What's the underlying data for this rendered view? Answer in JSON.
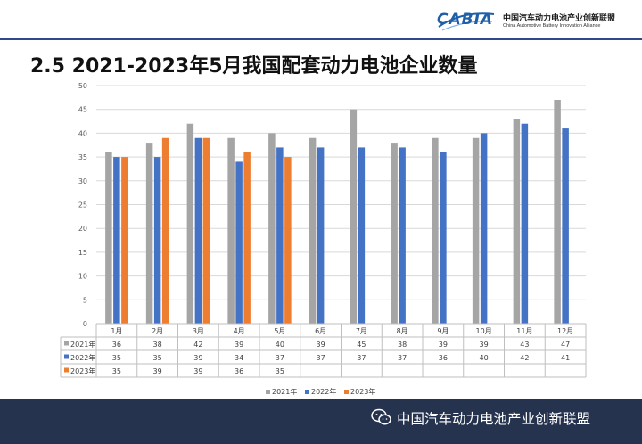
{
  "header": {
    "logo_text": "CABIA",
    "org_cn": "中国汽车动力电池产业创新联盟",
    "org_en": "China Automotive Battery Innovation Alliance"
  },
  "title": "2.5  2021-2023年5月我国配套动力电池企业数量",
  "footer": {
    "text": "中国汽车动力电池产业创新联盟",
    "icon": "wechat-icon"
  },
  "colors": {
    "s2021": "#a5a5a5",
    "s2022": "#4472c4",
    "s2023": "#ed7d31"
  },
  "chart_data": {
    "type": "bar",
    "title": "",
    "xlabel": "",
    "ylabel": "",
    "ylim": [
      0,
      50
    ],
    "yticks": [
      0,
      5,
      10,
      15,
      20,
      25,
      30,
      35,
      40,
      45,
      50
    ],
    "grid": true,
    "categories": [
      "1月",
      "2月",
      "3月",
      "4月",
      "5月",
      "6月",
      "7月",
      "8月",
      "9月",
      "10月",
      "11月",
      "12月"
    ],
    "series": [
      {
        "name": "2021年",
        "values": [
          36,
          38,
          42,
          39,
          40,
          39,
          45,
          38,
          39,
          39,
          43,
          47
        ]
      },
      {
        "name": "2022年",
        "values": [
          35,
          35,
          39,
          34,
          37,
          37,
          37,
          37,
          36,
          40,
          42,
          41
        ]
      },
      {
        "name": "2023年",
        "values": [
          35,
          39,
          39,
          36,
          35,
          null,
          null,
          null,
          null,
          null,
          null,
          null
        ]
      }
    ],
    "legend": "bottom",
    "data_table": true
  }
}
